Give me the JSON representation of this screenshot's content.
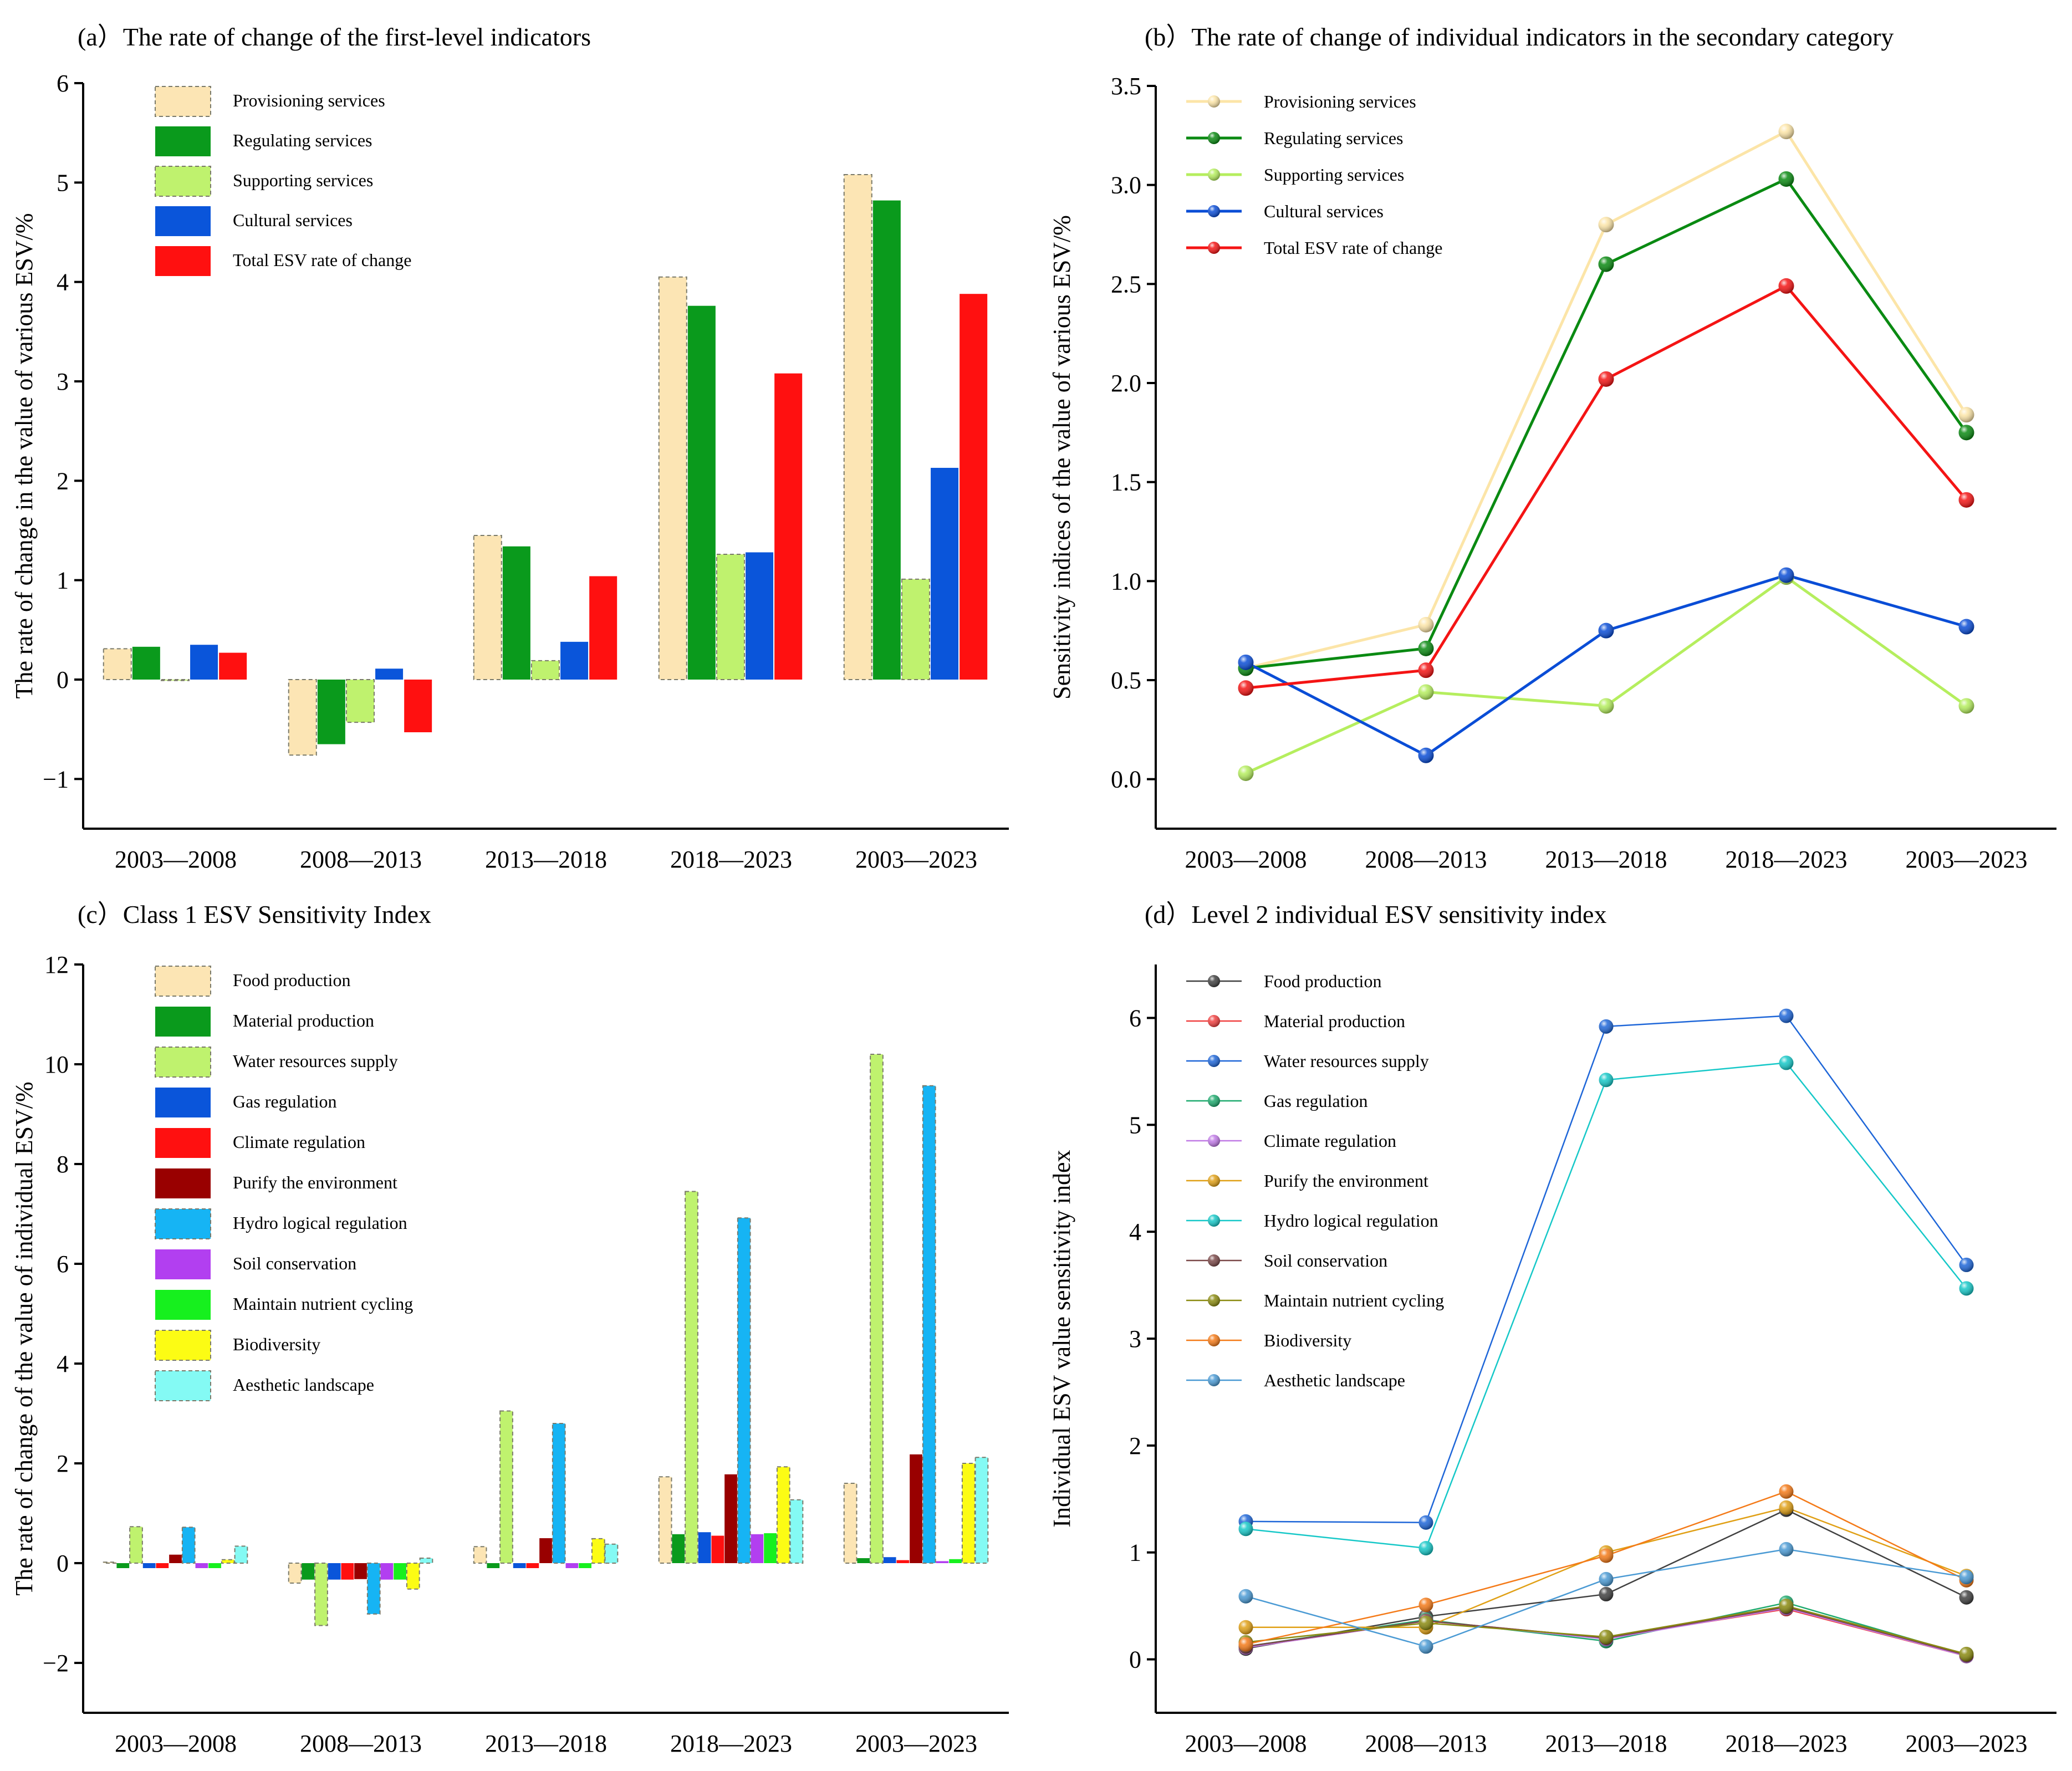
{
  "categories": [
    "2003—2008",
    "2008—2013",
    "2013—2018",
    "2018—2023",
    "2003—2023"
  ],
  "chart_data": [
    {
      "id": "a",
      "type": "bar",
      "title": "(a）The rate of change of the first-level indicators",
      "ylabel": "The rate of change in the value of various ESV/%",
      "xlabel": "",
      "ylim": [
        -1.5,
        6
      ],
      "yticks": [
        -1,
        0,
        1,
        2,
        3,
        4,
        5,
        6
      ],
      "ytick_labels": [
        "−1",
        "0",
        "1",
        "2",
        "3",
        "4",
        "5",
        "6"
      ],
      "categories": [
        "2003—2008",
        "2008—2013",
        "2013—2018",
        "2018—2023",
        "2003—2023"
      ],
      "series": [
        {
          "name": "Provisioning services",
          "color": "#FCE5B4",
          "dashed": true,
          "values": [
            0.31,
            -0.76,
            1.45,
            4.05,
            5.08
          ]
        },
        {
          "name": "Regulating services",
          "color": "#0A9A1C",
          "dashed": false,
          "values": [
            0.33,
            -0.65,
            1.34,
            3.76,
            4.82
          ]
        },
        {
          "name": "Supporting services",
          "color": "#BFF26E",
          "dashed": true,
          "values": [
            -0.01,
            -0.43,
            0.19,
            1.26,
            1.01
          ]
        },
        {
          "name": "Cultural services",
          "color": "#0A55DA",
          "dashed": false,
          "values": [
            0.35,
            0.11,
            0.38,
            1.28,
            2.13
          ]
        },
        {
          "name": "Total ESV rate of change",
          "color": "#FF1010",
          "dashed": false,
          "values": [
            0.27,
            -0.53,
            1.04,
            3.08,
            3.88
          ]
        }
      ]
    },
    {
      "id": "b",
      "type": "line",
      "title": "(b）The rate of change of individual indicators in the secondary category",
      "ylabel": "Sensitivity indices of the value of various ESV/%",
      "xlabel": "",
      "ylim": [
        -0.25,
        3.5
      ],
      "yticks": [
        0,
        0.5,
        1,
        1.5,
        2,
        2.5,
        3,
        3.5
      ],
      "ytick_labels": [
        "0.0",
        "0.5",
        "1.0",
        "1.5",
        "2.0",
        "2.5",
        "3.0",
        "3.5"
      ],
      "categories": [
        "2003—2008",
        "2008—2013",
        "2013—2018",
        "2018—2023",
        "2003—2023"
      ],
      "series": [
        {
          "name": "Provisioning services",
          "color": "#FCE5A8",
          "values": [
            0.56,
            0.78,
            2.8,
            3.27,
            1.84
          ]
        },
        {
          "name": "Regulating services",
          "color": "#0A8A12",
          "values": [
            0.56,
            0.66,
            2.6,
            3.03,
            1.75
          ]
        },
        {
          "name": "Supporting services",
          "color": "#B5EE5E",
          "values": [
            0.03,
            0.44,
            0.37,
            1.02,
            0.37
          ]
        },
        {
          "name": "Cultural services",
          "color": "#0A4DD6",
          "values": [
            0.59,
            0.12,
            0.75,
            1.03,
            0.77
          ]
        },
        {
          "name": "Total ESV rate of change",
          "color": "#F41414",
          "values": [
            0.46,
            0.55,
            2.02,
            2.49,
            1.41
          ]
        }
      ]
    },
    {
      "id": "c",
      "type": "bar",
      "title": "(c）Class 1 ESV Sensitivity Index",
      "ylabel": "The rate of change of the value of individual ESV/%",
      "xlabel": "",
      "ylim": [
        -3,
        12
      ],
      "yticks": [
        -2,
        0,
        2,
        4,
        6,
        8,
        10,
        12
      ],
      "ytick_labels": [
        "−2",
        "0",
        "2",
        "4",
        "6",
        "8",
        "10",
        "12"
      ],
      "categories": [
        "2003—2008",
        "2008—2013",
        "2013—2018",
        "2018—2023",
        "2003—2023"
      ],
      "series": [
        {
          "name": "Food production",
          "color": "#FCE5B4",
          "dashed": true,
          "values": [
            0.02,
            -0.4,
            0.33,
            1.73,
            1.6
          ]
        },
        {
          "name": "Material production",
          "color": "#0A9A1C",
          "dashed": false,
          "values": [
            -0.1,
            -0.33,
            -0.1,
            0.58,
            0.1
          ]
        },
        {
          "name": "Water resources supply",
          "color": "#BFF26E",
          "dashed": true,
          "values": [
            0.73,
            -1.25,
            3.05,
            7.45,
            10.2
          ]
        },
        {
          "name": "Gas regulation",
          "color": "#0A55DA",
          "dashed": false,
          "values": [
            -0.1,
            -0.33,
            -0.1,
            0.62,
            0.12
          ]
        },
        {
          "name": "Climate regulation",
          "color": "#FF1010",
          "dashed": false,
          "values": [
            -0.1,
            -0.33,
            -0.1,
            0.55,
            0.06
          ]
        },
        {
          "name": "Purify the environment",
          "color": "#990000",
          "dashed": false,
          "values": [
            0.17,
            -0.32,
            0.5,
            1.78,
            2.18
          ]
        },
        {
          "name": "Hydro logical regulation",
          "color": "#16B4F4",
          "dashed": true,
          "values": [
            0.72,
            -1.02,
            2.8,
            6.92,
            9.57
          ]
        },
        {
          "name": "Soil conservation",
          "color": "#B23FF0",
          "dashed": false,
          "values": [
            -0.1,
            -0.33,
            -0.1,
            0.58,
            0.04
          ]
        },
        {
          "name": "Maintain nutrient cycling",
          "color": "#16F01E",
          "dashed": false,
          "values": [
            -0.1,
            -0.33,
            -0.1,
            0.6,
            0.08
          ]
        },
        {
          "name": "Biodiversity",
          "color": "#FCFC14",
          "dashed": true,
          "values": [
            0.07,
            -0.52,
            0.49,
            1.93,
            2.0
          ]
        },
        {
          "name": "Aesthetic landscape",
          "color": "#84FAF4",
          "dashed": true,
          "values": [
            0.34,
            0.1,
            0.38,
            1.27,
            2.12
          ]
        }
      ]
    },
    {
      "id": "d",
      "type": "line",
      "title": "(d）Level 2 individual ESV sensitivity index",
      "ylabel": "Individual ESV value sensitivity index",
      "xlabel": "",
      "ylim": [
        -0.5,
        6.5
      ],
      "yticks": [
        0,
        1,
        2,
        3,
        4,
        5,
        6
      ],
      "ytick_labels": [
        "0",
        "1",
        "2",
        "3",
        "4",
        "5",
        "6"
      ],
      "categories": [
        "2003—2008",
        "2008—2013",
        "2013—2018",
        "2018—2023",
        "2003—2023"
      ],
      "series": [
        {
          "name": "Food production",
          "color": "#404040",
          "values": [
            0.1,
            0.4,
            0.61,
            1.4,
            0.58
          ]
        },
        {
          "name": "Material production",
          "color": "#F04040",
          "values": [
            0.11,
            0.36,
            0.2,
            0.47,
            0.03
          ]
        },
        {
          "name": "Water resources supply",
          "color": "#1E66D8",
          "values": [
            1.29,
            1.28,
            5.92,
            6.02,
            3.69
          ]
        },
        {
          "name": "Gas regulation",
          "color": "#1EAA6E",
          "values": [
            0.12,
            0.37,
            0.17,
            0.53,
            0.04
          ]
        },
        {
          "name": "Climate regulation",
          "color": "#C07AE6",
          "values": [
            0.11,
            0.36,
            0.19,
            0.48,
            0.03
          ]
        },
        {
          "name": "Purify the environment",
          "color": "#E0A016",
          "values": [
            0.3,
            0.3,
            1.0,
            1.42,
            0.78
          ]
        },
        {
          "name": "Hydro logical regulation",
          "color": "#16C8C8",
          "values": [
            1.22,
            1.04,
            5.42,
            5.58,
            3.47
          ]
        },
        {
          "name": "Soil conservation",
          "color": "#7A4848",
          "values": [
            0.12,
            0.36,
            0.2,
            0.49,
            0.04
          ]
        },
        {
          "name": "Maintain nutrient cycling",
          "color": "#8A8A10",
          "values": [
            0.16,
            0.34,
            0.21,
            0.5,
            0.05
          ]
        },
        {
          "name": "Biodiversity",
          "color": "#F47A18",
          "values": [
            0.14,
            0.51,
            0.97,
            1.57,
            0.74
          ]
        },
        {
          "name": "Aesthetic landscape",
          "color": "#4A9AD4",
          "values": [
            0.59,
            0.12,
            0.75,
            1.03,
            0.77
          ]
        }
      ]
    }
  ]
}
